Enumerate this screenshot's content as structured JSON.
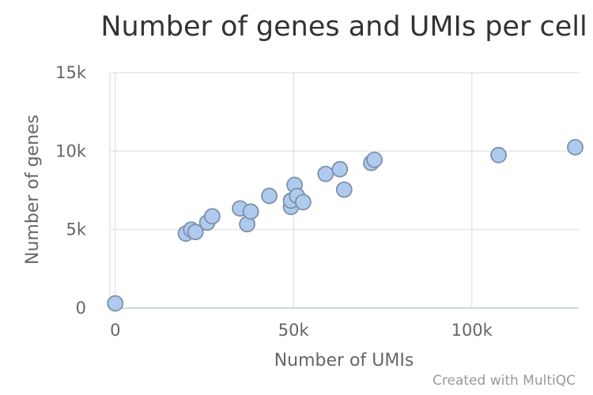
{
  "chart_data": {
    "type": "scatter",
    "title": "Number of genes and UMIs per cell",
    "xlabel": "Number of UMIs",
    "ylabel": "Number of genes",
    "xlim": [
      -1500,
      130000
    ],
    "ylim": [
      0,
      15000
    ],
    "x_ticks": [
      {
        "value": 0,
        "label": "0"
      },
      {
        "value": 50000,
        "label": "50k"
      },
      {
        "value": 100000,
        "label": "100k"
      }
    ],
    "y_ticks": [
      {
        "value": 0,
        "label": "0"
      },
      {
        "value": 5000,
        "label": "5k"
      },
      {
        "value": 10000,
        "label": "10k"
      },
      {
        "value": 15000,
        "label": "15k"
      }
    ],
    "grid": true,
    "point_color": "#aecbef",
    "point_stroke": "#7f8fa6",
    "points": [
      {
        "x": 0,
        "y": 300
      },
      {
        "x": 19800,
        "y": 4750
      },
      {
        "x": 21300,
        "y": 5000
      },
      {
        "x": 22500,
        "y": 4850
      },
      {
        "x": 25800,
        "y": 5450
      },
      {
        "x": 27200,
        "y": 5850
      },
      {
        "x": 35000,
        "y": 6350
      },
      {
        "x": 37000,
        "y": 5350
      },
      {
        "x": 38000,
        "y": 6150
      },
      {
        "x": 43200,
        "y": 7150
      },
      {
        "x": 49300,
        "y": 6450
      },
      {
        "x": 49300,
        "y": 6850
      },
      {
        "x": 50300,
        "y": 7850
      },
      {
        "x": 51000,
        "y": 7150
      },
      {
        "x": 52700,
        "y": 6750
      },
      {
        "x": 59000,
        "y": 8550
      },
      {
        "x": 63000,
        "y": 8850
      },
      {
        "x": 64200,
        "y": 7550
      },
      {
        "x": 71800,
        "y": 9250
      },
      {
        "x": 72700,
        "y": 9450
      },
      {
        "x": 107500,
        "y": 9750
      },
      {
        "x": 129000,
        "y": 10250
      }
    ]
  },
  "credit": "Created with MultiQC"
}
